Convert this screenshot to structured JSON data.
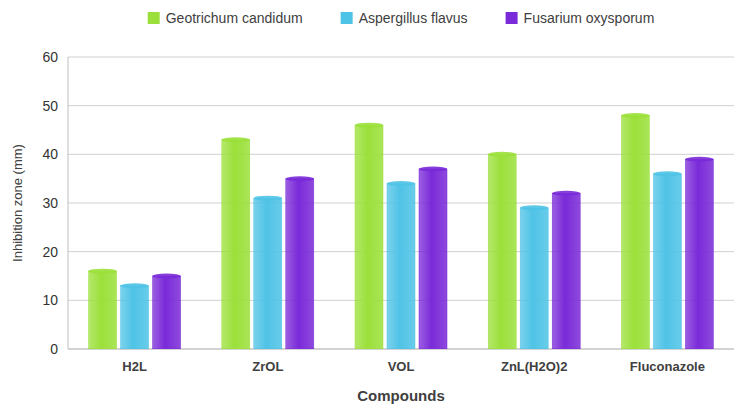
{
  "chart_data": {
    "type": "bar",
    "x_label": "Compounds",
    "y_label": "Inhibition zone (mm)",
    "categories": [
      "H2L",
      "ZrOL",
      "VOL",
      "ZnL(H2O)2",
      "Fluconazole"
    ],
    "series": [
      {
        "name": "Geotrichum candidum",
        "color": "#9be03a",
        "values": [
          16,
          43,
          46,
          40,
          48
        ]
      },
      {
        "name": "Aspergillus flavus",
        "color": "#4fc3e6",
        "values": [
          13,
          31,
          34,
          29,
          36
        ]
      },
      {
        "name": "Fusarium oxysporum",
        "color": "#7a2ad8",
        "values": [
          15,
          35,
          37,
          32,
          39
        ]
      }
    ],
    "ylim": [
      0,
      60
    ],
    "yticks": [
      0,
      10,
      20,
      30,
      40,
      50,
      60
    ],
    "grid": true,
    "legend": "top"
  }
}
